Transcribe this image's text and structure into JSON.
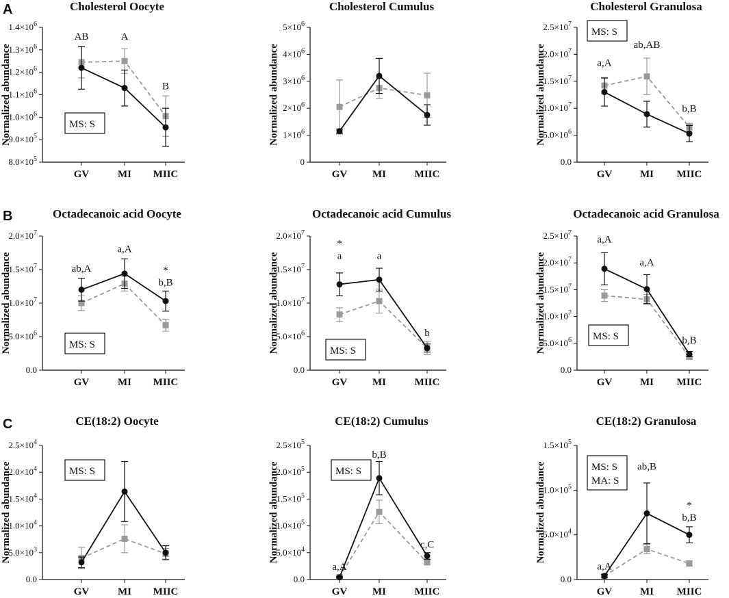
{
  "colors": {
    "series1": "#111111",
    "series2": "#999999",
    "axis": "#111111"
  },
  "chart_data": [
    {
      "panel": "A",
      "type": "line",
      "title": "Cholesterol Oocyte",
      "ylabel": "Normalized abundance",
      "xlabel": "",
      "categories": [
        "GV",
        "MI",
        "MIIC"
      ],
      "ylim": [
        800000,
        1400000
      ],
      "yticks": [
        800000,
        900000,
        1000000,
        1100000,
        1200000,
        1300000,
        1400000
      ],
      "ytick_labels": [
        {
          "m": "8.0×10",
          "e": "5"
        },
        {
          "m": "9.0×10",
          "e": "5"
        },
        {
          "m": "1.0×10",
          "e": "6"
        },
        {
          "m": "1.1×10",
          "e": "6"
        },
        {
          "m": "1.2×10",
          "e": "6"
        },
        {
          "m": "1.3×10",
          "e": "6"
        },
        {
          "m": "1.4×10",
          "e": "6"
        }
      ],
      "series": [
        {
          "name": "series 1",
          "style": "solid-circle",
          "values": [
            1220000,
            1130000,
            955000
          ],
          "errors": [
            95000,
            80000,
            85000
          ]
        },
        {
          "name": "series 2",
          "style": "dashed-square",
          "values": [
            1245000,
            1250000,
            1005000
          ],
          "errors": [
            70000,
            55000,
            90000
          ]
        }
      ],
      "annotations": [
        {
          "index": 0,
          "lines": [
            "AB"
          ],
          "value": 1345000
        },
        {
          "index": 1,
          "lines": [
            "A"
          ],
          "value": 1345000
        },
        {
          "index": 2,
          "lines": [
            "B"
          ],
          "value": 1125000
        }
      ],
      "box": {
        "lines": [
          "MS: S"
        ],
        "position": "bottom-left"
      }
    },
    {
      "panel": "",
      "type": "line",
      "title": "Cholesterol Cumulus",
      "ylabel": "Normalized abundance",
      "xlabel": "",
      "categories": [
        "GV",
        "MI",
        "MIIC"
      ],
      "ylim": [
        0,
        5000000
      ],
      "yticks": [
        0,
        1000000,
        2000000,
        3000000,
        4000000,
        5000000
      ],
      "ytick_labels": [
        {
          "m": "0",
          "e": ""
        },
        {
          "m": "1×10",
          "e": "6"
        },
        {
          "m": "2×10",
          "e": "6"
        },
        {
          "m": "3×10",
          "e": "6"
        },
        {
          "m": "4×10",
          "e": "6"
        },
        {
          "m": "5×10",
          "e": "6"
        }
      ],
      "series": [
        {
          "name": "series 1",
          "style": "solid-circle",
          "values": [
            1150000,
            3200000,
            1750000
          ],
          "errors": [
            80000,
            650000,
            380000
          ]
        },
        {
          "name": "series 2",
          "style": "dashed-square",
          "values": [
            2050000,
            2750000,
            2480000
          ],
          "errors": [
            1000000,
            380000,
            820000
          ]
        }
      ],
      "annotations": [],
      "box": null
    },
    {
      "panel": "",
      "type": "line",
      "title": "Cholesterol Granulosa",
      "ylabel": "Normalized abundance",
      "xlabel": "",
      "categories": [
        "GV",
        "MI",
        "MIIC"
      ],
      "ylim": [
        0,
        25000000
      ],
      "yticks": [
        0,
        5000000,
        10000000,
        15000000,
        20000000,
        25000000
      ],
      "ytick_labels": [
        {
          "m": "0.0",
          "e": ""
        },
        {
          "m": "5.0×10",
          "e": "6"
        },
        {
          "m": "1.0×10",
          "e": "7"
        },
        {
          "m": "1.5×10",
          "e": "7"
        },
        {
          "m": "2.0×10",
          "e": "7"
        },
        {
          "m": "2.5×10",
          "e": "7"
        }
      ],
      "series": [
        {
          "name": "series 1",
          "style": "solid-circle",
          "values": [
            13000000,
            8900000,
            5300000
          ],
          "errors": [
            2600000,
            2400000,
            1500000
          ]
        },
        {
          "name": "series 2",
          "style": "dashed-square",
          "values": [
            14200000,
            15900000,
            6500000
          ],
          "errors": [
            1500000,
            3400000,
            700000
          ]
        }
      ],
      "annotations": [
        {
          "index": 0,
          "lines": [
            "a,A"
          ],
          "value": 17800000
        },
        {
          "index": 1,
          "lines": [
            "ab,AB"
          ],
          "value": 21200000
        },
        {
          "index": 2,
          "lines": [
            "b,B"
          ],
          "value": 9300000
        }
      ],
      "box": {
        "lines": [
          "MS: S"
        ],
        "position": "top-left"
      }
    },
    {
      "panel": "B",
      "type": "line",
      "title": "Octadecanoic acid Oocyte",
      "ylabel": "Normalized abundance",
      "xlabel": "",
      "categories": [
        "GV",
        "MI",
        "MIIC"
      ],
      "ylim": [
        0,
        20000000
      ],
      "yticks": [
        0,
        5000000,
        10000000,
        15000000,
        20000000
      ],
      "ytick_labels": [
        {
          "m": "0.0",
          "e": ""
        },
        {
          "m": "5.0×10",
          "e": "6"
        },
        {
          "m": "1.0×10",
          "e": "7"
        },
        {
          "m": "1.5×10",
          "e": "7"
        },
        {
          "m": "2.0×10",
          "e": "7"
        }
      ],
      "series": [
        {
          "name": "series 1",
          "style": "solid-circle",
          "values": [
            12000000,
            14400000,
            10300000
          ],
          "errors": [
            1700000,
            2200000,
            1500000
          ]
        },
        {
          "name": "series 2",
          "style": "dashed-square",
          "values": [
            10000000,
            12900000,
            6700000
          ],
          "errors": [
            1100000,
            1100000,
            900000
          ]
        }
      ],
      "annotations": [
        {
          "index": 0,
          "lines": [
            "ab,A"
          ],
          "value": 14700000
        },
        {
          "index": 1,
          "lines": [
            "a,A"
          ],
          "value": 17600000
        },
        {
          "index": 2,
          "lines": [
            "*",
            "b,B"
          ],
          "value": 12600000
        }
      ],
      "box": {
        "lines": [
          "MS: S"
        ],
        "position": "bottom-left"
      }
    },
    {
      "panel": "",
      "type": "line",
      "title": "Octadecanoic acid Cumulus",
      "ylabel": "Normalized abundance",
      "xlabel": "",
      "categories": [
        "GV",
        "MI",
        "MIIC"
      ],
      "ylim": [
        0,
        20000000
      ],
      "yticks": [
        0,
        5000000,
        10000000,
        15000000,
        20000000
      ],
      "ytick_labels": [
        {
          "m": "0.0",
          "e": ""
        },
        {
          "m": "5.0×10",
          "e": "6"
        },
        {
          "m": "1.0×10",
          "e": "7"
        },
        {
          "m": "1.5×10",
          "e": "7"
        },
        {
          "m": "2.0×10",
          "e": "7"
        }
      ],
      "series": [
        {
          "name": "series 1",
          "style": "solid-circle",
          "values": [
            12800000,
            13500000,
            3300000
          ],
          "errors": [
            1700000,
            1700000,
            600000
          ]
        },
        {
          "name": "series 2",
          "style": "dashed-square",
          "values": [
            8300000,
            10300000,
            3300000
          ],
          "errors": [
            1000000,
            1800000,
            1000000
          ]
        }
      ],
      "annotations": [
        {
          "index": 0,
          "lines": [
            "*",
            "a"
          ],
          "value": 16600000
        },
        {
          "index": 1,
          "lines": [
            "a"
          ],
          "value": 16600000
        },
        {
          "index": 2,
          "lines": [
            "b"
          ],
          "value": 5100000
        }
      ],
      "box": {
        "lines": [
          "MS: S"
        ],
        "position": "bottom-left"
      }
    },
    {
      "panel": "",
      "type": "line",
      "title": "Octadecanoic acid Granulosa",
      "ylabel": "Normalized abundance",
      "xlabel": "",
      "categories": [
        "GV",
        "MI",
        "MIIC"
      ],
      "ylim": [
        0,
        25000000
      ],
      "yticks": [
        0,
        5000000,
        10000000,
        15000000,
        20000000,
        25000000
      ],
      "ytick_labels": [
        {
          "m": "0.0",
          "e": ""
        },
        {
          "m": "5.0×10",
          "e": "6"
        },
        {
          "m": "1.0×10",
          "e": "7"
        },
        {
          "m": "1.5×10",
          "e": "7"
        },
        {
          "m": "2.0×10",
          "e": "7"
        },
        {
          "m": "2.5×10",
          "e": "7"
        }
      ],
      "series": [
        {
          "name": "series 1",
          "style": "solid-circle",
          "values": [
            18900000,
            15100000,
            3000000
          ],
          "errors": [
            3000000,
            2700000,
            500000
          ]
        },
        {
          "name": "series 2",
          "style": "dashed-square",
          "values": [
            13900000,
            13200000,
            2500000
          ],
          "errors": [
            1100000,
            900000,
            400000
          ]
        }
      ],
      "annotations": [
        {
          "index": 0,
          "lines": [
            "a,A"
          ],
          "value": 23800000
        },
        {
          "index": 1,
          "lines": [
            "a,A"
          ],
          "value": 19500000
        },
        {
          "index": 2,
          "lines": [
            "b,B"
          ],
          "value": 5000000
        }
      ],
      "box": {
        "lines": [
          "MS: S"
        ],
        "position": "bottom-left"
      }
    },
    {
      "panel": "C",
      "type": "line",
      "title": "CE(18:2) Oocyte",
      "ylabel": "Normalized abundance",
      "xlabel": "",
      "categories": [
        "GV",
        "MI",
        "MIIC"
      ],
      "ylim": [
        0,
        25000
      ],
      "yticks": [
        0,
        5000,
        10000,
        15000,
        20000,
        25000
      ],
      "ytick_labels": [
        {
          "m": "0.0",
          "e": ""
        },
        {
          "m": "5.0×10",
          "e": "3"
        },
        {
          "m": "1.0×10",
          "e": "4"
        },
        {
          "m": "1.5×10",
          "e": "4"
        },
        {
          "m": "2.0×10",
          "e": "4"
        },
        {
          "m": "2.5×10",
          "e": "4"
        }
      ],
      "series": [
        {
          "name": "series 1",
          "style": "solid-circle",
          "values": [
            3200,
            16400,
            5000
          ],
          "errors": [
            1000,
            5600,
            1300
          ]
        },
        {
          "name": "series 2",
          "style": "dashed-square",
          "values": [
            4000,
            7600,
            4800
          ],
          "errors": [
            2000,
            2600,
            1000
          ]
        }
      ],
      "annotations": [],
      "box": {
        "lines": [
          "MS: S"
        ],
        "position": "top-left"
      }
    },
    {
      "panel": "",
      "type": "line",
      "title": "CE(18:2) Cumulus",
      "ylabel": "Normalized abundance",
      "xlabel": "",
      "categories": [
        "GV",
        "MI",
        "MIIC"
      ],
      "ylim": [
        0,
        250000
      ],
      "yticks": [
        0,
        50000,
        100000,
        150000,
        200000,
        250000
      ],
      "ytick_labels": [
        {
          "m": "0.0",
          "e": ""
        },
        {
          "m": "5.0×10",
          "e": "4"
        },
        {
          "m": "1.0×10",
          "e": "5"
        },
        {
          "m": "1.5×10",
          "e": "5"
        },
        {
          "m": "2.0×10",
          "e": "5"
        },
        {
          "m": "2.5×10",
          "e": "5"
        }
      ],
      "series": [
        {
          "name": "series 1",
          "style": "solid-circle",
          "values": [
            4000,
            189000,
            44000
          ],
          "errors": [
            1500,
            31000,
            6000
          ]
        },
        {
          "name": "series 2",
          "style": "dashed-square",
          "values": [
            4500,
            126000,
            32000
          ],
          "errors": [
            2000,
            22000,
            3000
          ]
        }
      ],
      "annotations": [
        {
          "index": 0,
          "lines": [
            "a,A"
          ],
          "value": 18000
        },
        {
          "index": 1,
          "lines": [
            "b,B"
          ],
          "value": 227000
        },
        {
          "index": 2,
          "lines": [
            "c,C"
          ],
          "value": 59000
        }
      ],
      "box": {
        "lines": [
          "MS: S"
        ],
        "position": "top-left"
      }
    },
    {
      "panel": "",
      "type": "line",
      "title": "CE(18:2) Granulosa",
      "ylabel": "Normalized abundance",
      "xlabel": "",
      "categories": [
        "GV",
        "MI",
        "MIIC"
      ],
      "ylim": [
        0,
        150000
      ],
      "yticks": [
        0,
        50000,
        100000,
        150000
      ],
      "ytick_labels": [
        {
          "m": "0.0",
          "e": ""
        },
        {
          "m": "5.0×10",
          "e": "4"
        },
        {
          "m": "1.0×10",
          "e": "5"
        },
        {
          "m": "1.5×10",
          "e": "5"
        }
      ],
      "series": [
        {
          "name": "series 1",
          "style": "solid-circle",
          "values": [
            4000,
            74000,
            50000
          ],
          "errors": [
            1500,
            34000,
            9000
          ]
        },
        {
          "name": "series 2",
          "style": "dashed-square",
          "values": [
            4000,
            34000,
            18000
          ],
          "errors": [
            1500,
            5000,
            3000
          ]
        }
      ],
      "annotations": [
        {
          "index": 0,
          "lines": [
            "a,A"
          ],
          "value": 11000
        },
        {
          "index": 1,
          "lines": [
            "ab,B"
          ],
          "value": 123000
        },
        {
          "index": 2,
          "lines": [
            "*",
            "b,B"
          ],
          "value": 66000
        }
      ],
      "box": {
        "lines": [
          "MS: S",
          "MA: S"
        ],
        "position": "top-left"
      }
    }
  ]
}
